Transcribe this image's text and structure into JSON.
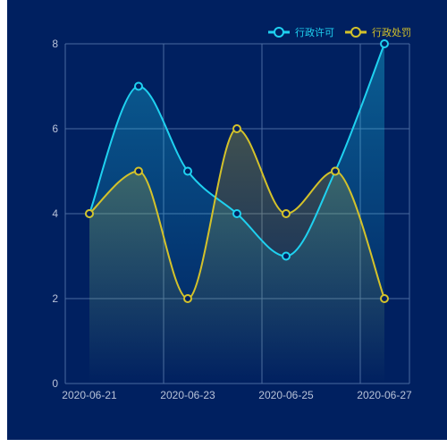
{
  "chart_data": {
    "type": "line",
    "x": [
      "2020-06-21",
      "2020-06-22",
      "2020-06-23",
      "2020-06-24",
      "2020-06-25",
      "2020-06-26",
      "2020-06-27"
    ],
    "x_tick_labels": [
      "2020-06-21",
      "2020-06-23",
      "2020-06-25",
      "2020-06-27"
    ],
    "y_ticks": [
      0,
      2,
      4,
      6,
      8
    ],
    "ylim": [
      0,
      8
    ],
    "title": "",
    "xlabel": "",
    "ylabel": "",
    "grid": true,
    "smooth": true,
    "area_fill": true,
    "legend_position": "top-right",
    "series": [
      {
        "name": "行政许可",
        "color": "#1fd1f0",
        "values": [
          4,
          7,
          5,
          4,
          3,
          5,
          8
        ]
      },
      {
        "name": "行政处罚",
        "color": "#d4c22a",
        "values": [
          4,
          5,
          2,
          6,
          4,
          5,
          2
        ]
      }
    ]
  },
  "colors": {
    "background": "#002060",
    "grid": "#4a6aa0",
    "axis_text": "#b8c2d8"
  }
}
